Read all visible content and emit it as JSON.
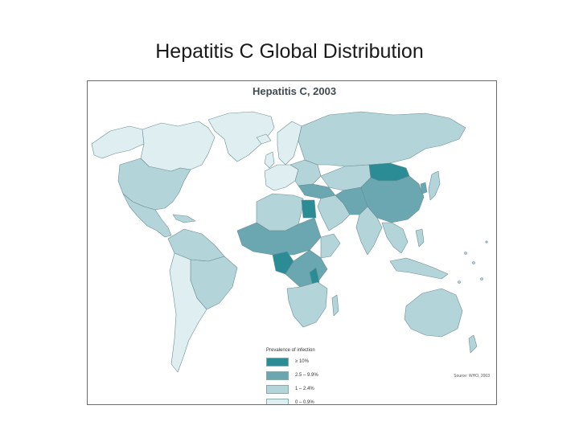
{
  "slide": {
    "title": "Hepatitis C Global Distribution"
  },
  "map": {
    "title": "Hepatitis C, 2003",
    "source": "Source: WHO, 2003",
    "legend": {
      "title": "Prevalence of infection",
      "items": [
        {
          "label": "≥ 10%",
          "color": "#2b8c96"
        },
        {
          "label": "2.5 – 9.9%",
          "color": "#6aa7b0"
        },
        {
          "label": "1 – 2.4%",
          "color": "#b3d4d9"
        },
        {
          "label": "0 – 0.9%",
          "color": "#dfeef1"
        }
      ]
    },
    "colors": {
      "ocean": "#ffffff",
      "border": "#6b8f96"
    }
  }
}
